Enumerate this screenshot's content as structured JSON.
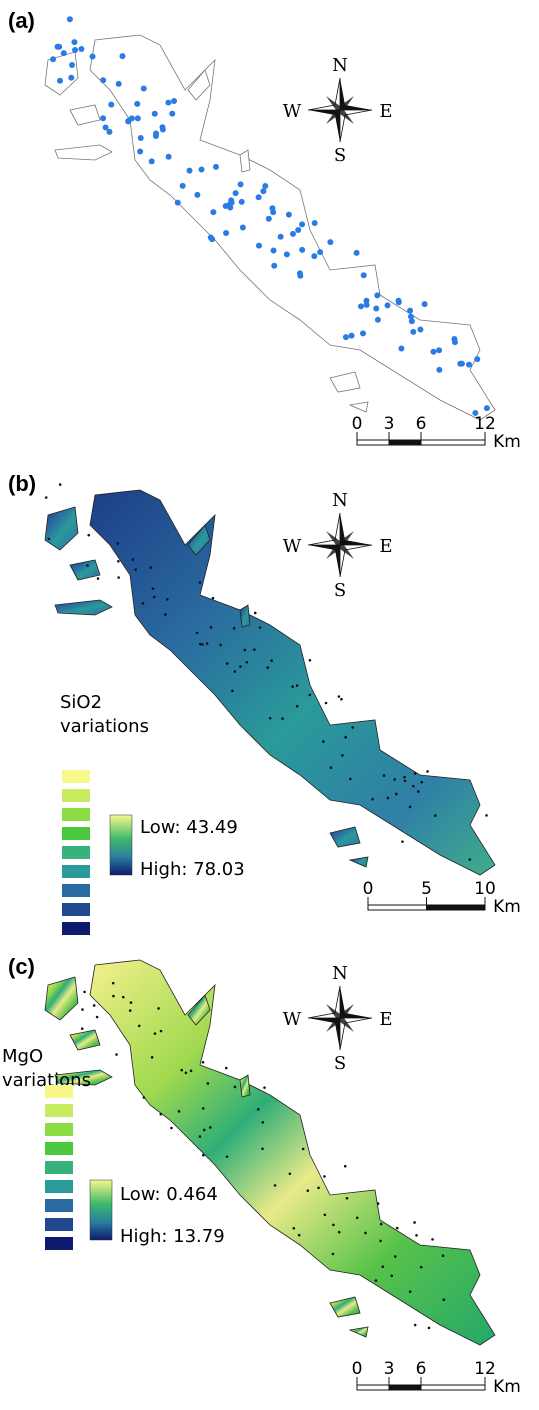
{
  "panels": [
    {
      "label": "(a)",
      "compass": {
        "n": "N",
        "s": "S",
        "w": "W",
        "e": "E"
      },
      "scale": {
        "ticks": [
          "0",
          "3",
          "6",
          "12"
        ],
        "unit": "Km"
      }
    },
    {
      "label": "(b)",
      "compass": {
        "n": "N",
        "s": "S",
        "w": "W",
        "e": "E"
      },
      "legend": {
        "title": [
          "SiO2",
          "variations"
        ],
        "low": "Low: 43.49",
        "high": "High: 78.03"
      },
      "scale": {
        "ticks": [
          "0",
          "5",
          "10"
        ],
        "unit": "Km"
      }
    },
    {
      "label": "(c)",
      "compass": {
        "n": "N",
        "s": "S",
        "w": "W",
        "e": "E"
      },
      "legend": {
        "title": [
          "MgO",
          "variations"
        ],
        "low": "Low: 0.464",
        "high": "High: 13.79"
      },
      "scale": {
        "ticks": [
          "0",
          "3",
          "6",
          "12"
        ],
        "unit": "Km"
      }
    }
  ]
}
